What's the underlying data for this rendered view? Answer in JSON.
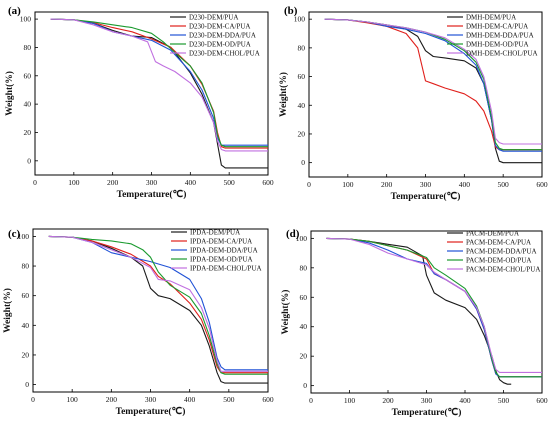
{
  "chart_data": [
    {
      "type": "line",
      "panel_label": "(a)",
      "xlabel": "Temperature(℃)",
      "ylabel": "Weight(%)",
      "xlim": [
        0,
        600
      ],
      "ylim": [
        -10,
        105
      ],
      "xticks": [
        0,
        100,
        200,
        300,
        400,
        500,
        600
      ],
      "yticks": [
        0,
        20,
        40,
        60,
        80,
        100
      ],
      "legend_position": "top-right",
      "series": [
        {
          "name": "D230-DEM/PUA",
          "color": "#1a1a1a",
          "x": [
            40,
            100,
            150,
            200,
            250,
            300,
            350,
            400,
            430,
            460,
            470,
            480,
            490,
            500,
            600
          ],
          "y": [
            100,
            99.5,
            97,
            92,
            88,
            87,
            80,
            62,
            47,
            27,
            12,
            -3,
            -5,
            -5,
            -5
          ]
        },
        {
          "name": "D230-DEM-CA/PUA",
          "color": "#e0201c",
          "x": [
            40,
            100,
            150,
            200,
            250,
            300,
            350,
            400,
            430,
            460,
            470,
            480,
            490,
            500,
            600
          ],
          "y": [
            100,
            99.5,
            97.5,
            94,
            91,
            86,
            80,
            67,
            54,
            35,
            20,
            10,
            9,
            9,
            9
          ]
        },
        {
          "name": "D230-DEM-DDA/PUA",
          "color": "#2052d6",
          "x": [
            40,
            100,
            150,
            200,
            250,
            300,
            350,
            400,
            430,
            460,
            470,
            480,
            490,
            500,
            600
          ],
          "y": [
            100,
            99.5,
            97,
            91,
            88,
            85,
            78,
            63,
            50,
            30,
            16,
            11,
            11,
            11,
            11
          ]
        },
        {
          "name": "D230-DEM-OD/PUA",
          "color": "#1a9a2e",
          "x": [
            40,
            100,
            150,
            200,
            250,
            300,
            330,
            370,
            400,
            430,
            460,
            470,
            480,
            490,
            500,
            600
          ],
          "y": [
            100,
            99.5,
            98,
            96,
            94,
            90,
            84,
            74,
            67,
            55,
            34,
            18,
            11,
            10,
            10,
            10
          ]
        },
        {
          "name": "D230-DEM-CHOL/PUA",
          "color": "#c070e0",
          "x": [
            40,
            100,
            150,
            200,
            250,
            290,
            310,
            330,
            360,
            400,
            430,
            460,
            470,
            480,
            490,
            500,
            600
          ],
          "y": [
            100,
            99.5,
            96,
            91,
            88,
            84,
            70,
            67,
            63,
            55,
            45,
            27,
            14,
            8,
            7,
            7,
            7
          ]
        }
      ]
    },
    {
      "type": "line",
      "panel_label": "(b)",
      "xlabel": "Temperature(℃)",
      "ylabel": "Weight(%)",
      "xlim": [
        0,
        600
      ],
      "ylim": [
        -10,
        105
      ],
      "xticks": [
        0,
        100,
        200,
        300,
        400,
        500,
        600
      ],
      "yticks": [
        0,
        20,
        40,
        60,
        80,
        100
      ],
      "legend_position": "top-right",
      "series": [
        {
          "name": "DMH-DEM/PUA",
          "color": "#1a1a1a",
          "x": [
            40,
            100,
            150,
            200,
            250,
            280,
            300,
            320,
            350,
            400,
            430,
            450,
            470,
            480,
            490,
            500,
            600
          ],
          "y": [
            100,
            99.5,
            98,
            96,
            93,
            88,
            78,
            74,
            73,
            71,
            66,
            55,
            30,
            10,
            1,
            0,
            0
          ]
        },
        {
          "name": "DMH-DEM-CA/PUA",
          "color": "#e0201c",
          "x": [
            40,
            100,
            150,
            200,
            250,
            280,
            300,
            320,
            350,
            400,
            430,
            450,
            470,
            480,
            490,
            500,
            600
          ],
          "y": [
            100,
            99.5,
            97.5,
            95,
            90,
            80,
            57,
            55,
            52,
            48,
            43,
            36,
            22,
            11,
            9,
            9,
            9
          ]
        },
        {
          "name": "DMH-DEM-DDA/PUA",
          "color": "#2052d6",
          "x": [
            40,
            100,
            150,
            200,
            250,
            300,
            350,
            400,
            430,
            450,
            470,
            480,
            490,
            500,
            600
          ],
          "y": [
            100,
            99.5,
            98,
            95,
            93,
            90,
            85,
            76,
            68,
            55,
            30,
            12,
            9,
            8,
            8
          ]
        },
        {
          "name": "DMH-DEM-OD/PUA",
          "color": "#1a9a2e",
          "x": [
            40,
            100,
            150,
            200,
            250,
            300,
            350,
            400,
            430,
            450,
            470,
            480,
            490,
            500,
            600
          ],
          "y": [
            100,
            99.5,
            98,
            96,
            94,
            91,
            86,
            78,
            70,
            58,
            32,
            14,
            10,
            9,
            9
          ]
        },
        {
          "name": "DMH-DEM-CHOL/PUA",
          "color": "#c070e0",
          "x": [
            40,
            100,
            150,
            200,
            250,
            300,
            350,
            400,
            430,
            450,
            470,
            480,
            490,
            500,
            600
          ],
          "y": [
            100,
            99.5,
            98,
            96,
            94,
            91,
            87,
            79,
            72,
            60,
            36,
            17,
            14,
            13,
            13
          ]
        }
      ]
    },
    {
      "type": "line",
      "panel_label": "(c)",
      "xlabel": "Temperature(℃)",
      "ylabel": "Weight(%)",
      "xlim": [
        0,
        600
      ],
      "ylim": [
        -5,
        105
      ],
      "xticks": [
        0,
        100,
        200,
        300,
        400,
        500,
        600
      ],
      "yticks": [
        0,
        20,
        40,
        60,
        80,
        100
      ],
      "legend_position": "top-right",
      "series": [
        {
          "name": "IPDA-DEM/PUA",
          "color": "#1a1a1a",
          "x": [
            40,
            100,
            150,
            200,
            250,
            280,
            300,
            320,
            350,
            400,
            430,
            450,
            470,
            480,
            490,
            500,
            600
          ],
          "y": [
            100,
            99.5,
            97,
            92,
            86,
            80,
            65,
            60,
            58,
            50,
            40,
            26,
            8,
            2,
            1,
            1,
            1
          ]
        },
        {
          "name": "IPDA-DEM-CA/PUA",
          "color": "#e0201c",
          "x": [
            40,
            100,
            150,
            200,
            250,
            300,
            320,
            350,
            400,
            430,
            450,
            470,
            480,
            490,
            500,
            600
          ],
          "y": [
            100,
            99.5,
            97,
            93,
            88,
            80,
            73,
            68,
            55,
            44,
            30,
            12,
            8,
            8,
            8,
            8
          ]
        },
        {
          "name": "IPDA-DEM-DDA/PUA",
          "color": "#2052d6",
          "x": [
            40,
            100,
            150,
            200,
            250,
            300,
            350,
            400,
            430,
            450,
            470,
            480,
            490,
            500,
            600
          ],
          "y": [
            100,
            99.5,
            96,
            89,
            86,
            83,
            79,
            71,
            58,
            42,
            18,
            12,
            10,
            10,
            10
          ]
        },
        {
          "name": "IPDA-DEM-OD/PUA",
          "color": "#1a9a2e",
          "x": [
            40,
            100,
            150,
            200,
            250,
            280,
            300,
            320,
            350,
            400,
            430,
            450,
            470,
            480,
            490,
            500,
            600
          ],
          "y": [
            100,
            99.5,
            98,
            97,
            95,
            91,
            86,
            76,
            67,
            59,
            48,
            33,
            14,
            8,
            7,
            7,
            7
          ]
        },
        {
          "name": "IPDA-DEM-CHOL/PUA",
          "color": "#c070e0",
          "x": [
            40,
            100,
            150,
            200,
            250,
            300,
            320,
            350,
            400,
            430,
            450,
            470,
            480,
            490,
            500,
            600
          ],
          "y": [
            100,
            99.5,
            96,
            91,
            86,
            79,
            71,
            70,
            64,
            52,
            38,
            16,
            9,
            9,
            9,
            9
          ]
        }
      ]
    },
    {
      "type": "line",
      "panel_label": "(d)",
      "xlabel": "Temperature(℃)",
      "ylabel": "Weight(%)",
      "xlim": [
        0,
        600
      ],
      "ylim": [
        -5,
        105
      ],
      "xticks": [
        0,
        100,
        200,
        300,
        400,
        500,
        600
      ],
      "yticks": [
        0,
        20,
        40,
        60,
        80,
        100
      ],
      "legend_position": "top-right",
      "series": [
        {
          "name": "PACM-DEM/PUA",
          "color": "#1a1a1a",
          "x": [
            40,
            100,
            150,
            200,
            250,
            290,
            300,
            320,
            350,
            400,
            430,
            450,
            470,
            480,
            490,
            500,
            510,
            520
          ],
          "y": [
            100,
            99.5,
            98,
            96,
            94,
            88,
            75,
            63,
            58,
            53,
            45,
            34,
            20,
            10,
            4,
            2,
            1,
            1
          ]
        },
        {
          "name": "PACM-DEM-CA/PUA",
          "color": "#e0201c",
          "x": [
            40,
            100,
            150,
            200,
            250,
            300,
            320,
            350,
            400,
            430,
            450,
            470,
            480,
            490,
            500,
            600
          ],
          "y": [
            100,
            99.5,
            98,
            95,
            92,
            86,
            76,
            72,
            64,
            52,
            38,
            17,
            8,
            6,
            6,
            6
          ]
        },
        {
          "name": "PACM-DEM-DDA/PUA",
          "color": "#2052d6",
          "x": [
            40,
            100,
            150,
            200,
            250,
            300,
            320,
            350,
            400,
            430,
            450,
            470,
            480,
            490,
            500,
            600
          ],
          "y": [
            100,
            99.5,
            97,
            92,
            86,
            83,
            76,
            72,
            64,
            52,
            38,
            17,
            8,
            6,
            6,
            6
          ]
        },
        {
          "name": "PACM-DEM-OD/PUA",
          "color": "#1a9a2e",
          "x": [
            40,
            100,
            150,
            200,
            250,
            300,
            320,
            350,
            400,
            430,
            450,
            470,
            480,
            490,
            500,
            600
          ],
          "y": [
            100,
            99.5,
            98,
            95,
            92,
            87,
            80,
            75,
            66,
            54,
            40,
            18,
            9,
            6,
            6,
            6
          ]
        },
        {
          "name": "PACM-DEM-CHOL/PUA",
          "color": "#c070e0",
          "x": [
            40,
            100,
            150,
            200,
            250,
            300,
            320,
            350,
            400,
            430,
            450,
            470,
            480,
            490,
            500,
            600
          ],
          "y": [
            100,
            99.5,
            96,
            90,
            86,
            82,
            77,
            72,
            64,
            53,
            40,
            20,
            11,
            9,
            9,
            9
          ]
        }
      ]
    }
  ]
}
